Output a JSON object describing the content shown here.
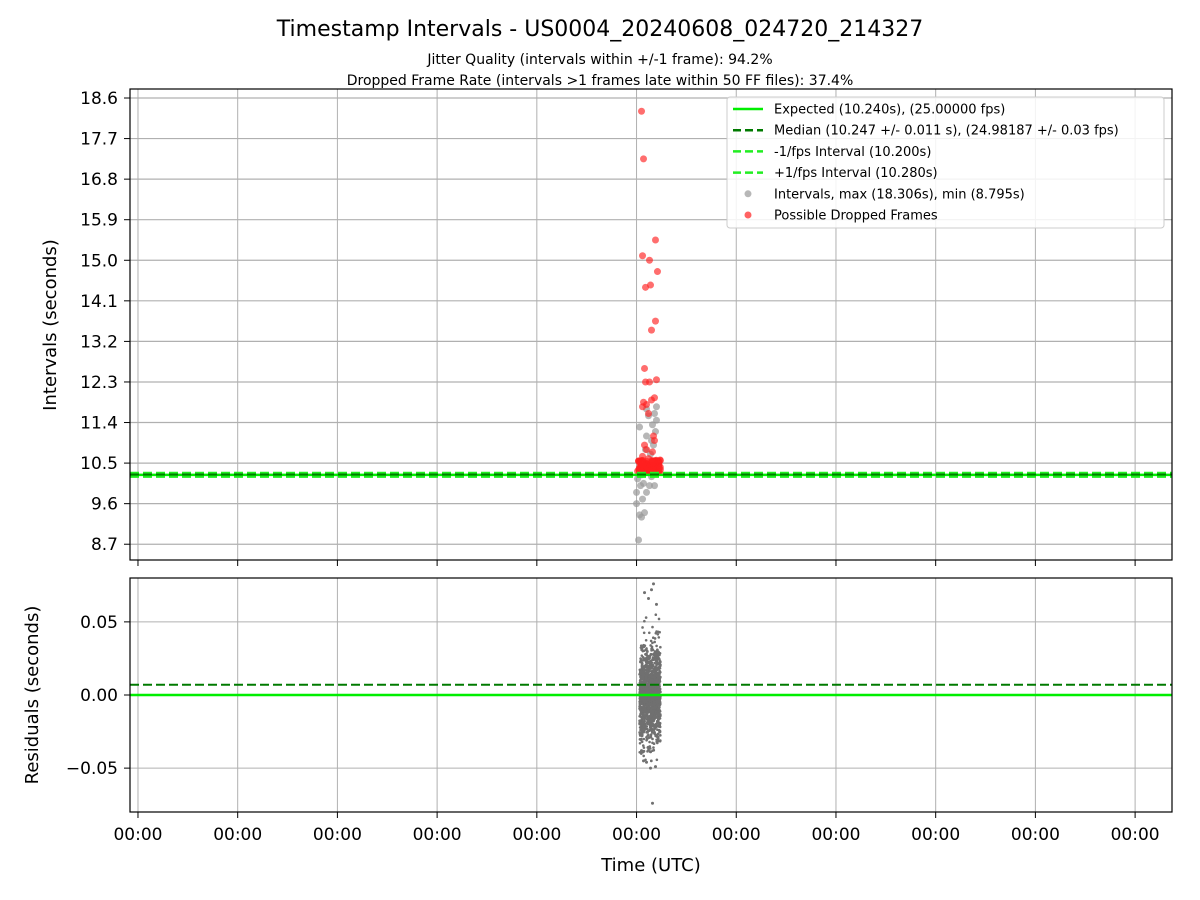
{
  "title": "Timestamp Intervals - US0004_20240608_024720_214327",
  "subtitle_lines": [
    "Jitter Quality (intervals within +/-1 frame): 94.2%",
    "Dropped Frame Rate (intervals >1 frames late within 50 FF files): 37.4%"
  ],
  "colors": {
    "expected": "#00ee00",
    "median": "#007a00",
    "interval_band": "#22ee22",
    "intervals": "#999999",
    "dropped": "#ff2020",
    "residuals": "#707070",
    "grid": "#b0b0b0"
  },
  "chart_data": [
    {
      "type": "scatter",
      "ylabel": "Intervals (seconds)",
      "xlabel": "",
      "yticks": [
        "18.6",
        "17.7",
        "16.8",
        "15.9",
        "15.0",
        "14.1",
        "13.2",
        "12.3",
        "11.4",
        "10.5",
        "9.6",
        "8.7"
      ],
      "ylim": [
        8.35,
        18.8
      ],
      "grid": true,
      "legend_position": "top-right",
      "legend": [
        {
          "label": "Expected (10.240s), (25.00000 fps)",
          "style": "solid-line"
        },
        {
          "label": "Median (10.247 +/- 0.011 s), (24.98187 +/- 0.03 fps)",
          "style": "dashed-line"
        },
        {
          "label": "-1/fps Interval (10.200s)",
          "style": "dashed-line"
        },
        {
          "label": "+1/fps Interval (10.280s)",
          "style": "dashed-line"
        },
        {
          "label": "Intervals, max (18.306s), min (8.795s)",
          "style": "marker"
        },
        {
          "label": "Possible Dropped Frames",
          "style": "marker"
        }
      ],
      "reference_lines": {
        "expected": 10.24,
        "median": 10.247,
        "minus_1fps": 10.2,
        "plus_1fps": 10.28
      },
      "intervals_points": [
        [
          5.02,
          8.795
        ],
        [
          5.05,
          9.3
        ],
        [
          5.03,
          9.35
        ],
        [
          5.08,
          9.4
        ],
        [
          5.0,
          9.6
        ],
        [
          5.06,
          9.7
        ],
        [
          5.1,
          9.85
        ],
        [
          5.0,
          9.85
        ],
        [
          5.04,
          10.0
        ],
        [
          5.13,
          10.0
        ],
        [
          5.18,
          10.0
        ],
        [
          5.07,
          10.05
        ],
        [
          5.01,
          10.15
        ],
        [
          5.15,
          10.2
        ],
        [
          5.05,
          10.24
        ],
        [
          5.11,
          10.3
        ],
        [
          5.08,
          10.5
        ],
        [
          5.14,
          10.7
        ],
        [
          5.17,
          10.9
        ],
        [
          5.1,
          11.1
        ],
        [
          5.19,
          11.2
        ],
        [
          5.16,
          11.35
        ],
        [
          5.2,
          11.45
        ],
        [
          5.12,
          11.55
        ],
        [
          5.18,
          11.6
        ],
        [
          5.2,
          11.75
        ],
        [
          5.1,
          11.7
        ],
        [
          5.03,
          11.3
        ],
        [
          5.15,
          11.0
        ],
        [
          5.09,
          10.8
        ]
      ],
      "dropped_points": [
        [
          5.05,
          18.306
        ],
        [
          5.07,
          17.25
        ],
        [
          5.19,
          15.45
        ],
        [
          5.06,
          15.1
        ],
        [
          5.13,
          15.0
        ],
        [
          5.21,
          14.75
        ],
        [
          5.09,
          14.4
        ],
        [
          5.14,
          14.45
        ],
        [
          5.19,
          13.65
        ],
        [
          5.15,
          13.45
        ],
        [
          5.08,
          12.6
        ],
        [
          5.2,
          12.35
        ],
        [
          5.13,
          12.3
        ],
        [
          5.09,
          12.3
        ],
        [
          5.18,
          11.95
        ],
        [
          5.15,
          11.9
        ],
        [
          5.07,
          11.85
        ],
        [
          5.1,
          11.8
        ],
        [
          5.06,
          11.75
        ],
        [
          5.12,
          11.6
        ],
        [
          5.17,
          11.1
        ],
        [
          5.18,
          11.0
        ],
        [
          5.08,
          10.9
        ],
        [
          5.1,
          10.8
        ],
        [
          5.16,
          10.75
        ],
        [
          5.06,
          10.65
        ],
        [
          5.12,
          10.6
        ],
        [
          5.04,
          10.55
        ],
        [
          5.2,
          10.5
        ],
        [
          5.08,
          10.45
        ],
        [
          5.14,
          10.45
        ],
        [
          5.03,
          10.4
        ],
        [
          5.11,
          10.4
        ],
        [
          5.18,
          10.38
        ],
        [
          5.06,
          10.35
        ],
        [
          5.16,
          10.33
        ],
        [
          5.01,
          10.32
        ],
        [
          5.09,
          10.31
        ],
        [
          5.13,
          10.3
        ],
        [
          5.2,
          10.3
        ]
      ]
    },
    {
      "type": "scatter",
      "ylabel": "Residuals (seconds)",
      "xlabel": "Time (UTC)",
      "yticks": [
        "0.05",
        "0.00",
        "−0.05"
      ],
      "ytick_values": [
        0.05,
        0.0,
        -0.05
      ],
      "ylim": [
        -0.08,
        0.08
      ],
      "grid": true,
      "reference_lines": {
        "expected": 0.0,
        "median": 0.007
      },
      "x_ticks": [
        "00:00",
        "00:00",
        "00:00",
        "00:00",
        "00:00",
        "00:00",
        "00:00",
        "00:00",
        "00:00",
        "00:00",
        "00:00"
      ],
      "x_tick_values": [
        0,
        1,
        2,
        3,
        4,
        5,
        6,
        7,
        8,
        9,
        10
      ],
      "xlim": [
        -0.08,
        10.37
      ],
      "residual_cluster": {
        "x_min": 5.03,
        "x_max": 5.24,
        "count": 1400,
        "sd": 0.016
      },
      "residual_outliers": [
        [
          5.17,
          0.076
        ],
        [
          5.15,
          0.072
        ],
        [
          5.08,
          0.07
        ],
        [
          5.12,
          0.066
        ],
        [
          5.2,
          0.062
        ],
        [
          5.1,
          -0.046
        ],
        [
          5.14,
          -0.05
        ],
        [
          5.19,
          -0.049
        ],
        [
          5.07,
          -0.045
        ],
        [
          5.16,
          -0.074
        ]
      ]
    }
  ]
}
